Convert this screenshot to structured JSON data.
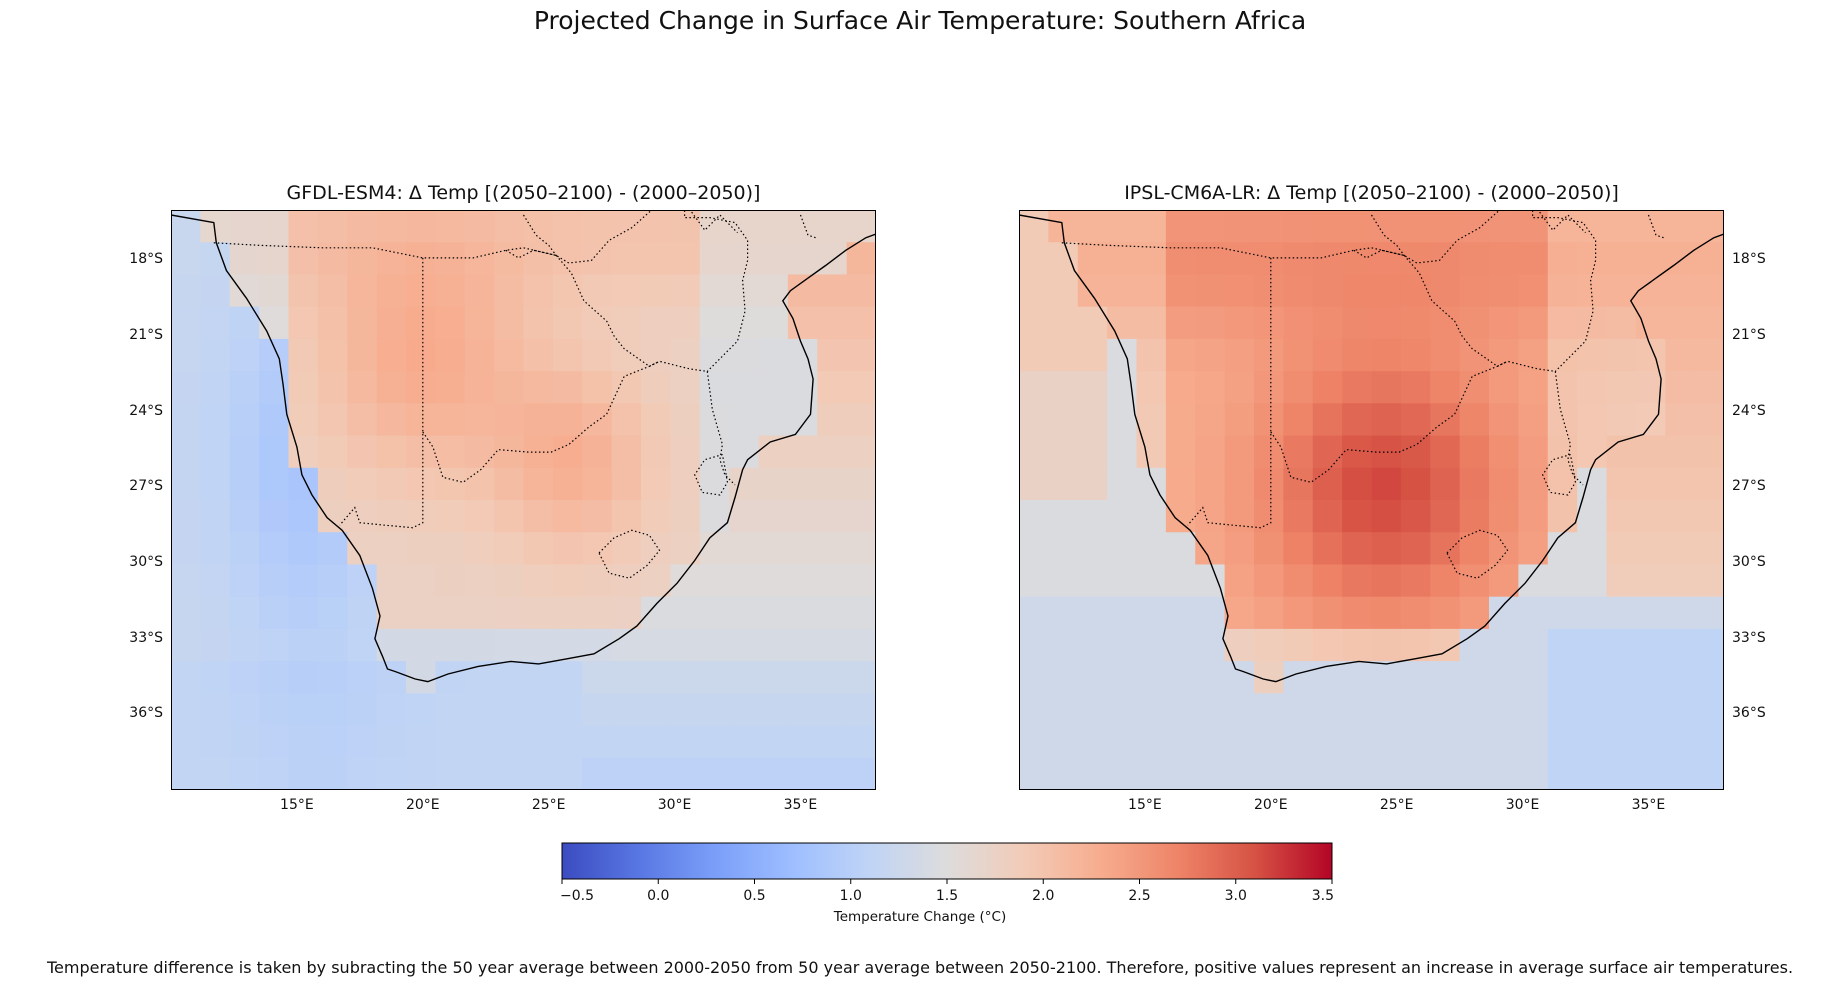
{
  "figure": {
    "title": "Projected Change in Surface Air Temperature: Southern Africa",
    "caption": "Temperature difference is taken by subracting the 50 year average between 2000-2050 from 50 year average between 2050-2100. Therefore, positive values represent an increase in average surface air temperatures."
  },
  "map_extent": {
    "lon": [
      10,
      38
    ],
    "lat": [
      -39,
      -16
    ]
  },
  "lat_ticks": [
    "18°S",
    "21°S",
    "24°S",
    "27°S",
    "30°S",
    "33°S",
    "36°S"
  ],
  "lat_tick_values": [
    -18,
    -21,
    -24,
    -27,
    -30,
    -33,
    -36
  ],
  "lon_ticks": [
    "15°E",
    "20°E",
    "25°E",
    "30°E",
    "35°E"
  ],
  "lon_tick_values": [
    15,
    20,
    25,
    30,
    35
  ],
  "panels": [
    {
      "title": "GFDL-ESM4: Δ Temp [(2050–2100) - (2000–2050)]",
      "model": "GFDL-ESM4"
    },
    {
      "title": "IPSL-CM6A-LR: Δ Temp [(2050–2100) - (2000–2050)]",
      "model": "IPSL-CM6A-LR"
    }
  ],
  "colorbar": {
    "label": "Temperature Change (°C)",
    "colormap": "coolwarm",
    "range": [
      -0.5,
      3.5
    ],
    "ticks": [
      "−0.5",
      "0.0",
      "0.5",
      "1.0",
      "1.5",
      "2.0",
      "2.5",
      "3.0",
      "3.5"
    ],
    "colors": [
      "#3b4cc0",
      "#5977e3",
      "#7b9ff9",
      "#9ebeff",
      "#c0d4f5",
      "#dddcdc",
      "#f2cbb7",
      "#f7ac8e",
      "#ee8468",
      "#d65244",
      "#b40426"
    ]
  }
}
